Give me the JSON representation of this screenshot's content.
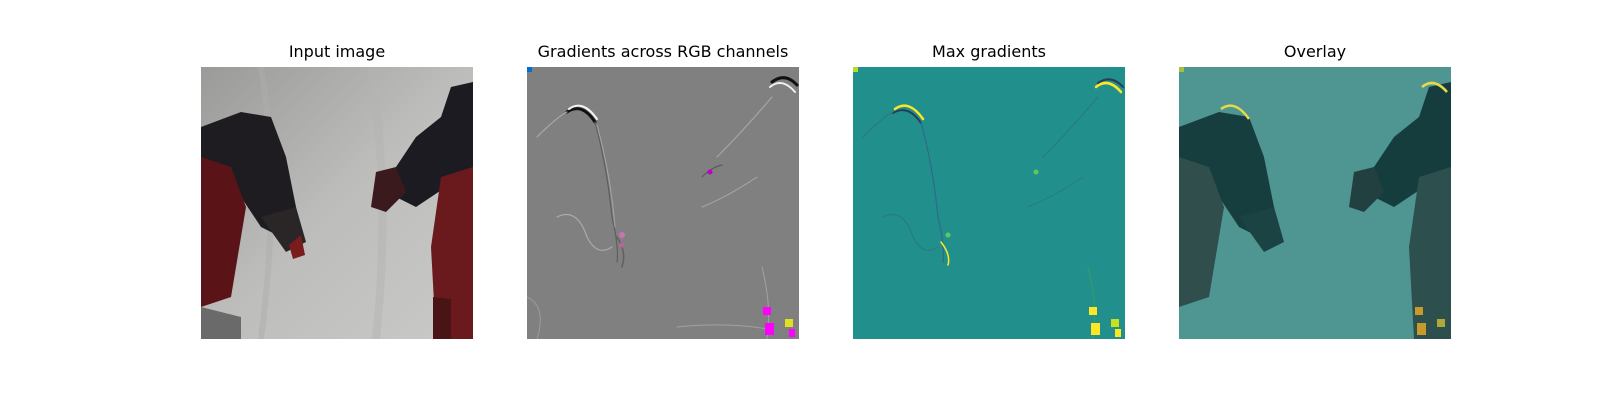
{
  "figure": {
    "panels": [
      {
        "title": "Input image"
      },
      {
        "title": "Gradients across RGB channels"
      },
      {
        "title": "Max gradients"
      },
      {
        "title": "Overlay"
      }
    ]
  },
  "colors": {
    "background": "#ffffff",
    "gradient_gray": "#808080",
    "max_gradient_teal": "#21908d",
    "overlay_teal": "#4f9592",
    "highlight_yellow": "#fde725",
    "highlight_magenta": "#ff00ff"
  }
}
